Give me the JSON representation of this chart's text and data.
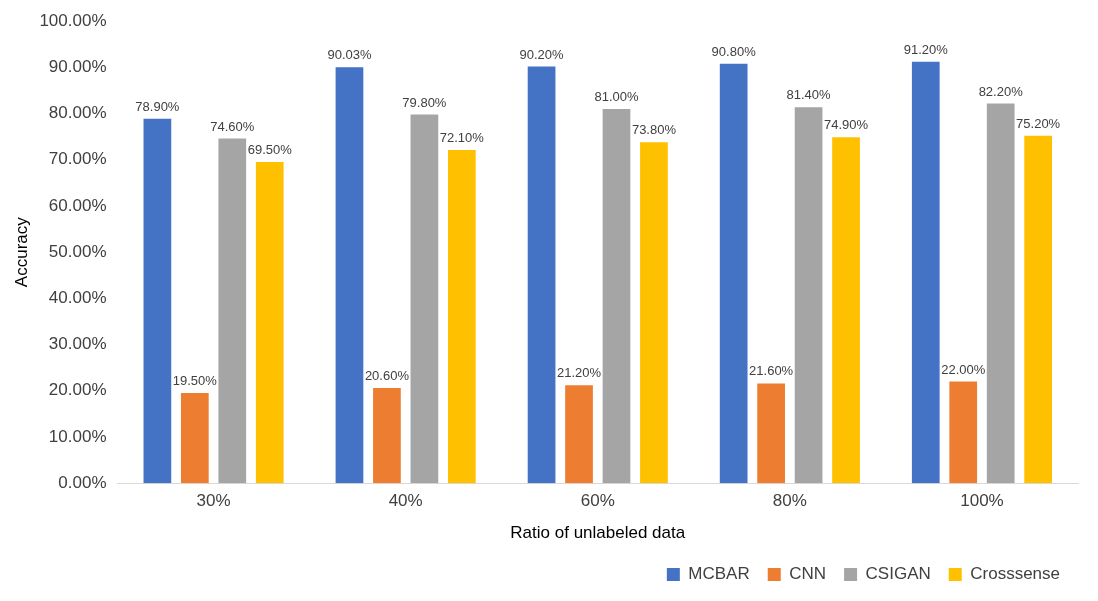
{
  "chart_data": {
    "type": "bar",
    "xlabel": "Ratio of unlabeled data",
    "ylabel": "Accuracy",
    "categories": [
      "30%",
      "40%",
      "60%",
      "80%",
      "100%"
    ],
    "series": [
      {
        "name": "MCBAR",
        "color": "#4472c4",
        "values": [
          78.9,
          90.03,
          90.2,
          90.8,
          91.2
        ],
        "value_labels": [
          "78.90%",
          "90.03%",
          "90.20%",
          "90.80%",
          "91.20%"
        ]
      },
      {
        "name": "CNN",
        "color": "#ed7d31",
        "values": [
          19.5,
          20.6,
          21.2,
          21.6,
          22.0
        ],
        "value_labels": [
          "19.50%",
          "20.60%",
          "21.20%",
          "21.60%",
          "22.00%"
        ]
      },
      {
        "name": "CSIGAN",
        "color": "#a5a5a5",
        "values": [
          74.6,
          79.8,
          81.0,
          81.4,
          82.2
        ],
        "value_labels": [
          "74.60%",
          "79.80%",
          "81.00%",
          "81.40%",
          "82.20%"
        ]
      },
      {
        "name": "Crosssense",
        "color": "#ffc000",
        "values": [
          69.5,
          72.1,
          73.8,
          74.9,
          75.2
        ],
        "value_labels": [
          "69.50%",
          "72.10%",
          "73.80%",
          "74.90%",
          "75.20%"
        ]
      }
    ],
    "ylim": [
      0,
      100
    ],
    "yticks": [
      {
        "value": 0,
        "label": "0.00%"
      },
      {
        "value": 10,
        "label": "10.00%"
      },
      {
        "value": 20,
        "label": "20.00%"
      },
      {
        "value": 30,
        "label": "30.00%"
      },
      {
        "value": 40,
        "label": "40.00%"
      },
      {
        "value": 50,
        "label": "50.00%"
      },
      {
        "value": 60,
        "label": "60.00%"
      },
      {
        "value": 70,
        "label": "70.00%"
      },
      {
        "value": 80,
        "label": "80.00%"
      },
      {
        "value": 90,
        "label": "90.00%"
      },
      {
        "value": 100,
        "label": "100.00%"
      }
    ],
    "grid": false,
    "legend": "bottom right"
  }
}
